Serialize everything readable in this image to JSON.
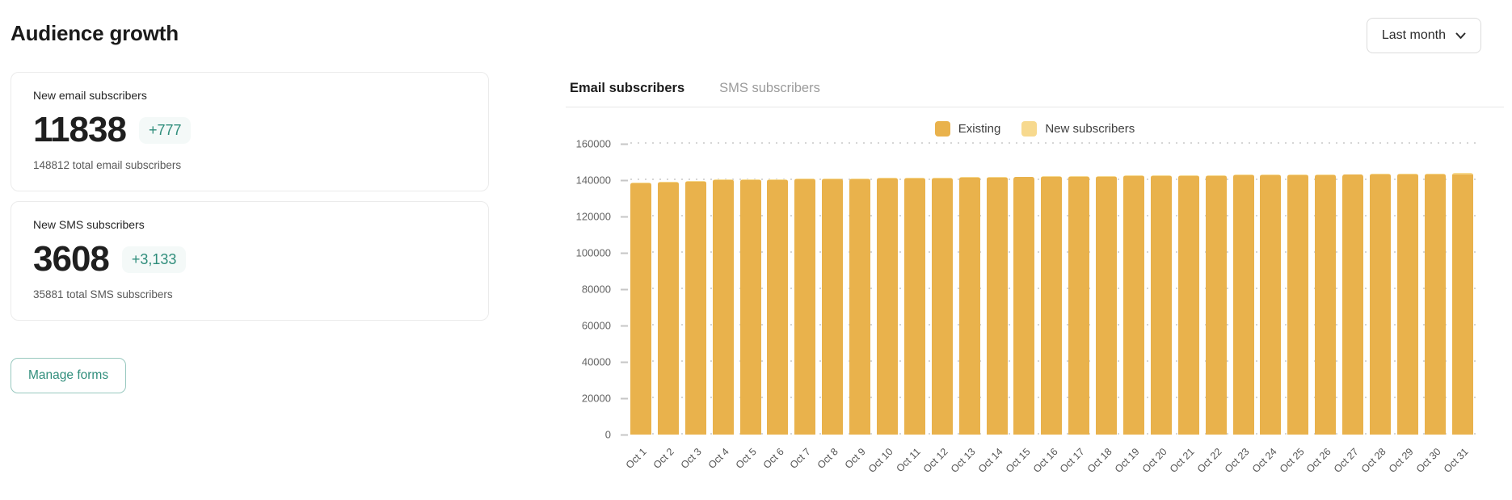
{
  "page": {
    "title": "Audience growth"
  },
  "period_selector": {
    "label": "Last month"
  },
  "stats": {
    "email": {
      "label": "New email subscribers",
      "value": "11838",
      "delta": "+777",
      "total": "148812 total email subscribers"
    },
    "sms": {
      "label": "New SMS subscribers",
      "value": "3608",
      "delta": "+3,133",
      "total": "35881 total SMS subscribers"
    }
  },
  "actions": {
    "manage_forms_label": "Manage forms"
  },
  "tabs": {
    "email": {
      "label": "Email subscribers",
      "active": true
    },
    "sms": {
      "label": "SMS subscribers",
      "active": false
    }
  },
  "chart_data": {
    "type": "bar",
    "stacked": true,
    "title": "",
    "xlabel": "",
    "ylabel": "",
    "ylim": [
      0,
      160000
    ],
    "ytick_step": 20000,
    "grid": "dotted-horizontal",
    "legend_position": "top-center",
    "categories": [
      "Oct 1",
      "Oct 2",
      "Oct 3",
      "Oct 4",
      "Oct 5",
      "Oct 6",
      "Oct 7",
      "Oct 8",
      "Oct 9",
      "Oct 10",
      "Oct 11",
      "Oct 12",
      "Oct 13",
      "Oct 14",
      "Oct 15",
      "Oct 16",
      "Oct 17",
      "Oct 18",
      "Oct 19",
      "Oct 20",
      "Oct 21",
      "Oct 22",
      "Oct 23",
      "Oct 24",
      "Oct 25",
      "Oct 26",
      "Oct 27",
      "Oct 28",
      "Oct 29",
      "Oct 30",
      "Oct 31"
    ],
    "series": [
      {
        "name": "Existing",
        "color": "#e9b24c",
        "values": [
          138200,
          138600,
          139100,
          139800,
          140100,
          140200,
          140300,
          140500,
          140600,
          140800,
          140900,
          141100,
          141300,
          141400,
          141600,
          141700,
          141800,
          141900,
          142100,
          142200,
          142300,
          142400,
          142500,
          142600,
          142700,
          142800,
          142900,
          143000,
          143100,
          143200,
          143300
        ]
      },
      {
        "name": "New subscribers",
        "color": "#f7d98e",
        "values": [
          380,
          420,
          390,
          450,
          410,
          400,
          380,
          420,
          430,
          400,
          390,
          410,
          420,
          400,
          380,
          390,
          400,
          410,
          420,
          390,
          380,
          400,
          410,
          390,
          400,
          380,
          390,
          400,
          410,
          420,
          777
        ]
      }
    ]
  },
  "colors": {
    "accent_teal": "#2f8d7b",
    "bar_existing": "#e9b24c",
    "bar_new": "#f7d98e",
    "delta_badge_bg": "#f4f9f8"
  }
}
